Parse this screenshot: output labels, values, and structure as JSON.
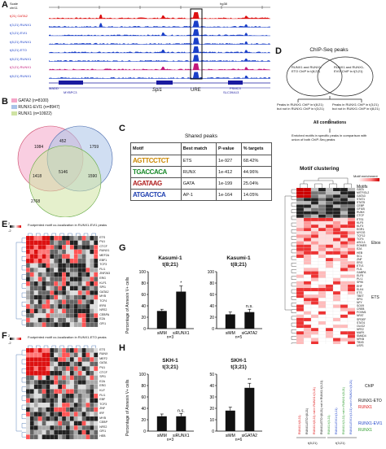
{
  "panels": {
    "A": "A",
    "B": "B",
    "C": "C",
    "D": "D",
    "E": "E",
    "F": "F",
    "G": "G",
    "H": "H"
  },
  "panelA": {
    "scale_label": "Scale",
    "chr_label": "chr11",
    "urE_box_label": "hg38",
    "track_labels": [
      "t(21) GATA2",
      "t(3;21) RUNX1",
      "t(3;21) EVI1",
      "t(8;21) RUNX1",
      "t(8;21) ETO",
      "t(8;21) RUNX1",
      "t(3;21) RUNX1",
      "t(8;21) RUNX1"
    ],
    "gene_labels": [
      "MADD",
      "MYBPC3",
      "SPI1",
      "PSMC3",
      "SLC39A13"
    ],
    "spi1_label": "Spi1",
    "ure_label": "URE"
  },
  "panelB": {
    "legend": [
      {
        "label": "GATA2 (n=8100)",
        "color": "#f4a6c8"
      },
      {
        "label": "RUNX1-EVI1 (n=8947)",
        "color": "#a9c3e8"
      },
      {
        "label": "RUNX1 (n=10922)",
        "color": "#cfe3a3"
      }
    ],
    "regions": {
      "gata2_only": "1084",
      "gata2_evi1": "452",
      "evi1_only": "1759",
      "gata2_runx1": "1418",
      "all": "5146",
      "evi1_runx1": "1590",
      "runx1_only": "2768"
    }
  },
  "panelC": {
    "title": "Shared peaks",
    "headers": [
      "Motif",
      "Best match",
      "P-value",
      "% targets"
    ],
    "rows": [
      {
        "logo": "AGTTCCTCT",
        "match": "ETS",
        "p": "1e-927",
        "pct": "68.42%"
      },
      {
        "logo": "TGACCACA",
        "match": "RUNX",
        "p": "1e-412",
        "pct": "44.96%"
      },
      {
        "logo": "AGATAAG",
        "match": "GATA",
        "p": "1e-199",
        "pct": "25.04%"
      },
      {
        "logo": "ATGACTCA",
        "match": "AP-1",
        "p": "1e-164",
        "pct": "14.05%"
      }
    ]
  },
  "panelD": {
    "title": "ChIP-Seq peaks",
    "venn_left": "RUNX1 and RUNX1-ETO ChIP in t(8;21)",
    "venn_right": "RUNX1 and RUNX1-EVI1 ChIP in t(3;21)",
    "box_left": "Peaks in RUNX1 ChIP in t(8;21) but not in RUNX1 ChIP in t(3;21)",
    "box_right": "Peaks in RUNX1 ChIP in t(3;21) but not in RUNX1 ChIP in t(8;21)",
    "all_comb": "All combinations",
    "enriched": "Enriched motifs in specific peaks in comparison with union of both ChIP-Seq peaks",
    "clustering_title": "Motif clustering",
    "colorbar_label": "Motif enrichment",
    "motifs_label": "Motifs",
    "ebox_label": "Ebox",
    "ets_label": "ETS",
    "motif_names": [
      "GATA",
      "MITF/GL2",
      "GATA3",
      "STAT1",
      "STAT5",
      "CEBP",
      "GFI1B",
      "RUNX",
      "CTCF",
      "ETS1",
      "KLF5",
      "KLF3",
      "EGR1",
      "MYOG",
      "TCF12",
      "TCF4",
      "ASCL1",
      "EOMES",
      "E2A",
      "HEB",
      "SCL",
      "ZNF",
      "ERG",
      "ETV1",
      "FLI1",
      "GABPA",
      "ELF5",
      "PU.1",
      "SPIB",
      "EHF",
      "ELK4",
      "ETS",
      "TBET",
      "SPI1",
      "NFY",
      "SOX9",
      "CREB",
      "FOXM1",
      "NFAT",
      "SPDEF",
      "STAT4",
      "OLIG2",
      "NFE2",
      "MAFK",
      "SMAD4",
      "NFKB",
      "TBX5",
      "USF1"
    ],
    "col_labels": [
      "RUNX1 t(8;21)",
      "RUNX1-ETO t(8;21)",
      "RUNX1 t(8;21) not in RUNX1 t(3;21)",
      "RUNX1-ETO t(8;21) not in RUNX1 t(3;21)",
      "RUNX1 t(3;21)",
      "RUNX1-EVI1 t(3;21)",
      "RUNX1 t(3;21) not in RUNX1 t(8;21)",
      "RUNX1-EVI1 t(3;21) not in RUNX1 t(8;21)"
    ],
    "group1": "t(8;21)",
    "group2": "t(3;21)",
    "legend_chip": "ChIP",
    "legend_runx1eto_a": "RUNX1-ETO",
    "legend_runx1eto_b": "RUNX1",
    "legend_runx1evi1_a": "RUNX1-EVI1",
    "legend_runx1evi1_b": "RUNX1"
  },
  "panelE": {
    "title": "Footprinted motif co-localization in RUNX1-EVI1 peaks",
    "scale_max": "2",
    "scale_min": "-2",
    "rows": [
      "ETS",
      "PU1",
      "CTCF",
      "RUNX1",
      "MEF2A",
      "EBF1",
      "TCF3",
      "FLI1",
      "ZNF263",
      "ERG",
      "KLF1",
      "SPI1",
      "GATA2",
      "MYB",
      "TCF4",
      "IRF8",
      "NFE2",
      "CEBPA",
      "E2A",
      "GFI1"
    ]
  },
  "panelF": {
    "title": "Footprinted motif co-localization in RUNX1-ETO peaks",
    "scale_max": "2",
    "scale_min": "-2",
    "rows": [
      "ETS",
      "RUNX",
      "MEF2",
      "GATA",
      "PU1",
      "CTCF",
      "SPI1",
      "E2A",
      "ERG",
      "KLF",
      "FLI1",
      "EBF",
      "TCF3",
      "ZNF",
      "IRF",
      "MYB",
      "CEBP",
      "NFE2",
      "GFI1",
      "HEB"
    ]
  },
  "panelG": {
    "ylabel": "Percentage of Annexin V+ cells",
    "left": {
      "title1": "Kasumi-1",
      "title2": "t(8;21)",
      "n": "n=3",
      "sig": "*"
    },
    "right": {
      "title1": "Kasumi-1",
      "title2": "t(8;21)",
      "n": "n=5",
      "sig": "n.s."
    }
  },
  "panelH": {
    "ylabel": "Percentage of Annexin V+ cells",
    "left": {
      "title1": "SKH-1",
      "title2": "t(3;21)",
      "n": "n=3",
      "sig": "n.s."
    },
    "right": {
      "title1": "SKH-1",
      "title2": "t(3;21)",
      "n": "n=6",
      "sig": "**"
    }
  },
  "chart_data": [
    {
      "type": "bar",
      "panel": "G-left",
      "categories": [
        "siMM",
        "siRUNX1"
      ],
      "values": [
        31,
        65
      ],
      "ylim": [
        0,
        100
      ],
      "yticks": [
        "0",
        "20",
        "40",
        "60",
        "80",
        "100"
      ]
    },
    {
      "type": "bar",
      "panel": "G-right",
      "categories": [
        "siMM",
        "siGATA2"
      ],
      "values": [
        25,
        29
      ],
      "ylim": [
        0,
        100
      ],
      "yticks": [
        "0",
        "20",
        "40",
        "60",
        "80",
        "100"
      ]
    },
    {
      "type": "bar",
      "panel": "H-left",
      "categories": [
        "siMM",
        "siRUNX1"
      ],
      "values": [
        26,
        26
      ],
      "ylim": [
        0,
        100
      ],
      "yticks": [
        "0",
        "20",
        "40",
        "60",
        "80",
        "100"
      ]
    },
    {
      "type": "bar",
      "panel": "H-right",
      "categories": [
        "siMM",
        "siGATA2"
      ],
      "values": [
        18,
        38
      ],
      "ylim": [
        0,
        50
      ],
      "yticks": [
        "0",
        "10",
        "20",
        "30",
        "40",
        "50"
      ]
    }
  ]
}
